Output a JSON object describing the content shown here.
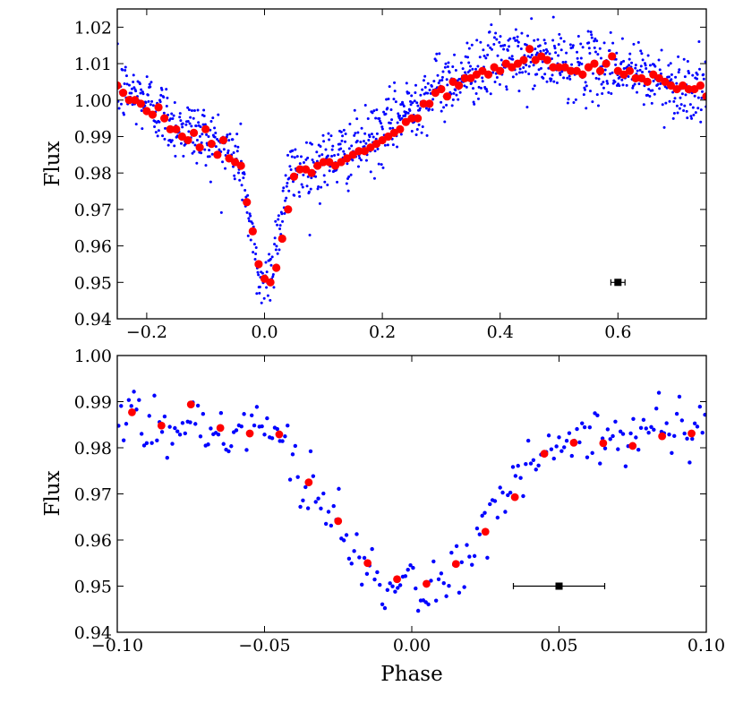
{
  "colors": {
    "raw": "#0000ff",
    "binned": "#ff0000",
    "errorbar": "#000000"
  },
  "chart_data": [
    {
      "type": "scatter",
      "name": "full-phase",
      "xlabel": "",
      "ylabel": "Flux",
      "xlim": [
        -0.25,
        0.75
      ],
      "ylim": [
        0.94,
        1.025
      ],
      "xticks": [
        -0.2,
        0.0,
        0.2,
        0.4,
        0.6
      ],
      "xtick_labels": [
        "−0.2",
        "0.0",
        "0.2",
        "0.4",
        "0.6"
      ],
      "yticks": [
        0.94,
        0.95,
        0.96,
        0.97,
        0.98,
        0.99,
        1.0,
        1.01,
        1.02
      ],
      "ytick_labels": [
        "0.94",
        "0.95",
        "0.96",
        "0.97",
        "0.98",
        "0.99",
        "1.00",
        "1.01",
        "1.02"
      ],
      "model_curve": {
        "x": [
          -0.25,
          -0.2,
          -0.15,
          -0.1,
          -0.06,
          -0.04,
          -0.03,
          -0.02,
          -0.01,
          0.0,
          0.01,
          0.02,
          0.03,
          0.04,
          0.06,
          0.1,
          0.15,
          0.2,
          0.25,
          0.3,
          0.35,
          0.4,
          0.45,
          0.5,
          0.55,
          0.6,
          0.65,
          0.7,
          0.75
        ],
        "y": [
          1.003,
          1.0,
          0.993,
          0.99,
          0.986,
          0.983,
          0.972,
          0.96,
          0.951,
          0.95,
          0.953,
          0.962,
          0.97,
          0.979,
          0.981,
          0.983,
          0.986,
          0.991,
          0.999,
          1.004,
          1.008,
          1.011,
          1.011,
          1.01,
          1.009,
          1.009,
          1.006,
          1.004,
          1.002
        ],
        "scatter_sigma": 0.0045,
        "n_points": 1100
      },
      "binned": {
        "x": [
          -0.25,
          -0.24,
          -0.23,
          -0.22,
          -0.21,
          -0.2,
          -0.19,
          -0.18,
          -0.17,
          -0.16,
          -0.15,
          -0.14,
          -0.13,
          -0.12,
          -0.11,
          -0.1,
          -0.09,
          -0.08,
          -0.07,
          -0.06,
          -0.05,
          -0.04,
          -0.03,
          -0.02,
          -0.01,
          0.0,
          0.01,
          0.02,
          0.03,
          0.04,
          0.05,
          0.06,
          0.07,
          0.08,
          0.09,
          0.1,
          0.11,
          0.12,
          0.13,
          0.14,
          0.15,
          0.16,
          0.17,
          0.18,
          0.19,
          0.2,
          0.21,
          0.22,
          0.23,
          0.24,
          0.25,
          0.26,
          0.27,
          0.28,
          0.29,
          0.3,
          0.31,
          0.32,
          0.33,
          0.34,
          0.35,
          0.36,
          0.37,
          0.38,
          0.39,
          0.4,
          0.41,
          0.42,
          0.43,
          0.44,
          0.45,
          0.46,
          0.47,
          0.48,
          0.49,
          0.5,
          0.51,
          0.52,
          0.53,
          0.54,
          0.55,
          0.56,
          0.57,
          0.58,
          0.59,
          0.6,
          0.61,
          0.62,
          0.63,
          0.64,
          0.65,
          0.66,
          0.67,
          0.68,
          0.69,
          0.7,
          0.71,
          0.72,
          0.73,
          0.74,
          0.75
        ],
        "y": [
          1.004,
          1.002,
          1.0,
          1.0,
          0.999,
          0.997,
          0.996,
          0.998,
          0.995,
          0.992,
          0.992,
          0.99,
          0.989,
          0.991,
          0.987,
          0.992,
          0.988,
          0.985,
          0.989,
          0.984,
          0.983,
          0.982,
          0.972,
          0.964,
          0.955,
          0.951,
          0.95,
          0.954,
          0.962,
          0.97,
          0.979,
          0.981,
          0.981,
          0.98,
          0.982,
          0.983,
          0.983,
          0.982,
          0.983,
          0.984,
          0.985,
          0.986,
          0.986,
          0.987,
          0.988,
          0.989,
          0.99,
          0.991,
          0.992,
          0.994,
          0.995,
          0.995,
          0.999,
          0.999,
          1.002,
          1.003,
          1.001,
          1.005,
          1.004,
          1.006,
          1.006,
          1.007,
          1.008,
          1.007,
          1.009,
          1.008,
          1.01,
          1.009,
          1.01,
          1.011,
          1.014,
          1.011,
          1.012,
          1.011,
          1.009,
          1.009,
          1.009,
          1.008,
          1.008,
          1.007,
          1.009,
          1.01,
          1.008,
          1.01,
          1.012,
          1.008,
          1.007,
          1.008,
          1.006,
          1.006,
          1.005,
          1.007,
          1.006,
          1.005,
          1.004,
          1.003,
          1.004,
          1.003,
          1.003,
          1.004,
          1.001
        ]
      },
      "errorbar": {
        "x": 0.6,
        "y": 0.95,
        "xerr": 0.012
      }
    },
    {
      "type": "scatter",
      "name": "zoom-eclipse",
      "xlabel": "Phase",
      "ylabel": "Flux",
      "xlim": [
        -0.1,
        0.1
      ],
      "ylim": [
        0.94,
        1.0
      ],
      "xticks": [
        -0.1,
        -0.05,
        0.0,
        0.05,
        0.1
      ],
      "xtick_labels": [
        "−0.10",
        "−0.05",
        "0.00",
        "0.05",
        "0.10"
      ],
      "yticks": [
        0.94,
        0.95,
        0.96,
        0.97,
        0.98,
        0.99,
        1.0
      ],
      "ytick_labels": [
        "0.94",
        "0.95",
        "0.96",
        "0.97",
        "0.98",
        "0.99",
        "1.00"
      ],
      "model_curve": {
        "x": [
          -0.1,
          -0.08,
          -0.06,
          -0.045,
          -0.04,
          -0.035,
          -0.03,
          -0.025,
          -0.02,
          -0.015,
          -0.01,
          -0.005,
          0.0,
          0.005,
          0.01,
          0.015,
          0.02,
          0.025,
          0.03,
          0.035,
          0.04,
          0.045,
          0.06,
          0.08,
          0.1
        ],
        "y": [
          0.988,
          0.985,
          0.984,
          0.983,
          0.978,
          0.972,
          0.967,
          0.962,
          0.957,
          0.954,
          0.951,
          0.95,
          0.949,
          0.949,
          0.951,
          0.953,
          0.957,
          0.962,
          0.967,
          0.972,
          0.977,
          0.98,
          0.981,
          0.981,
          0.983
        ],
        "scatter_sigma": 0.0035,
        "n_points": 230
      },
      "binned": {
        "x": [
          -0.095,
          -0.085,
          -0.075,
          -0.065,
          -0.055,
          -0.045,
          -0.035,
          -0.025,
          -0.015,
          -0.005,
          0.005,
          0.015,
          0.025,
          0.035,
          0.045,
          0.055,
          0.065,
          0.075,
          0.085,
          0.095
        ],
        "y": [
          0.9877,
          0.9848,
          0.9894,
          0.9843,
          0.9831,
          0.9829,
          0.9725,
          0.9641,
          0.955,
          0.9515,
          0.9505,
          0.9548,
          0.9618,
          0.9693,
          0.9787,
          0.9811,
          0.981,
          0.9804,
          0.9825,
          0.9831
        ]
      },
      "errorbar": {
        "x": 0.05,
        "y": 0.95,
        "xerr": 0.0155
      }
    }
  ]
}
